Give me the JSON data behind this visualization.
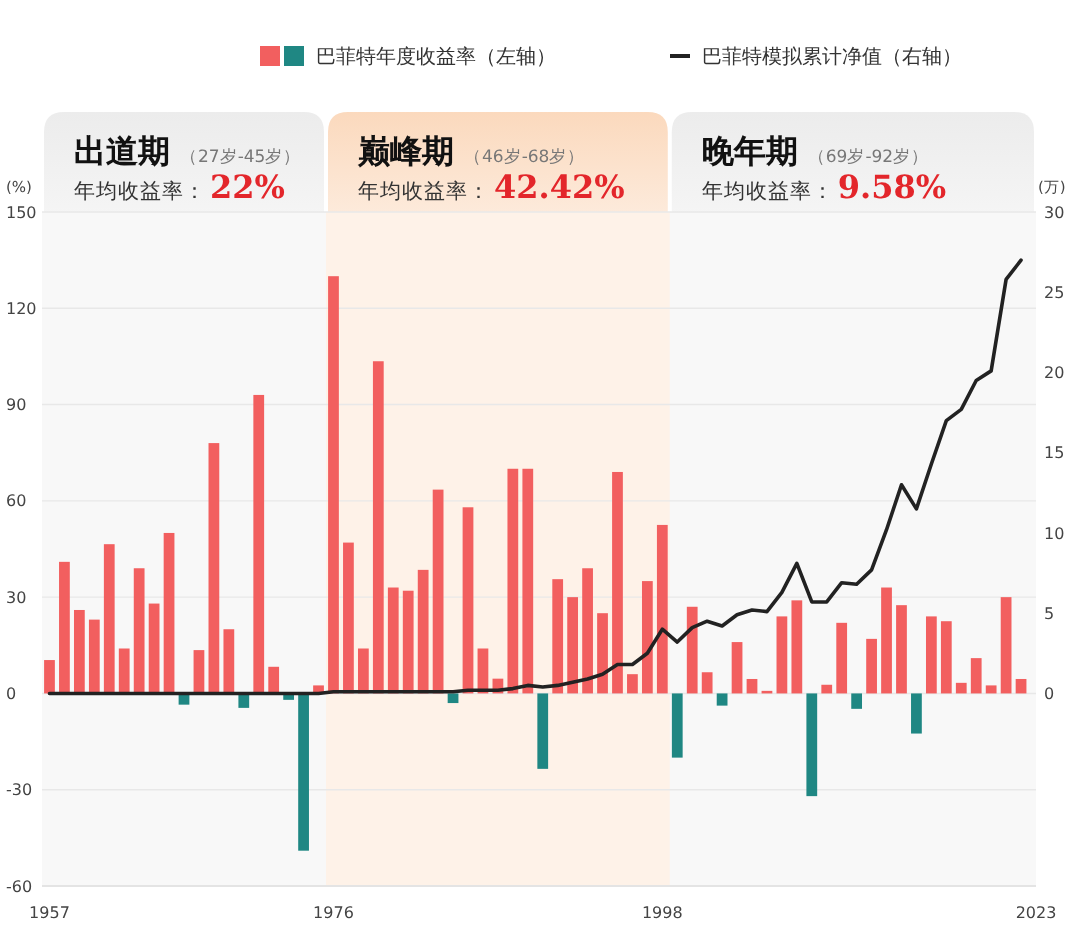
{
  "chart_data": {
    "type": "bar",
    "ylabel": "(%)",
    "y2label": "(万)",
    "x": [
      1957,
      1958,
      1959,
      1960,
      1961,
      1962,
      1963,
      1964,
      1965,
      1966,
      1967,
      1968,
      1969,
      1970,
      1971,
      1972,
      1973,
      1974,
      1975,
      1976,
      1977,
      1978,
      1979,
      1980,
      1981,
      1982,
      1983,
      1984,
      1985,
      1986,
      1987,
      1988,
      1989,
      1990,
      1991,
      1992,
      1993,
      1994,
      1995,
      1996,
      1997,
      1998,
      1999,
      2000,
      2001,
      2002,
      2003,
      2004,
      2005,
      2006,
      2007,
      2008,
      2009,
      2010,
      2011,
      2012,
      2013,
      2014,
      2015,
      2016,
      2017,
      2018,
      2019,
      2020,
      2021,
      2022
    ],
    "xlim": [
      1956.5,
      2023
    ],
    "xticks": [
      1957,
      1976,
      1998,
      2023
    ],
    "ylim": [
      -60,
      150
    ],
    "yticks": [
      -60,
      -30,
      0,
      30,
      60,
      90,
      120,
      150
    ],
    "y2lim": [
      -12,
      30
    ],
    "y2ticks": [
      0,
      5,
      10,
      15,
      20,
      25,
      30
    ],
    "grid": "y",
    "legend": "top",
    "series": [
      {
        "name": "巴菲特年度收益率（左轴）",
        "colors": [
          "#f25f5f",
          "#f25f5f",
          "#f25f5f",
          "#f25f5f",
          "#f25f5f",
          "#f25f5f",
          "#f25f5f",
          "#f25f5f",
          "#f25f5f",
          "#1f8783",
          "#f25f5f",
          "#f25f5f",
          "#f25f5f",
          "#1f8783",
          "#f25f5f",
          "#f25f5f",
          "#1f8783",
          "#1f8783",
          "#f25f5f",
          "#f25f5f",
          "#f25f5f",
          "#f25f5f",
          "#f25f5f",
          "#f25f5f",
          "#f25f5f",
          "#f25f5f",
          "#f25f5f",
          "#1f8783",
          "#f25f5f",
          "#f25f5f",
          "#f25f5f",
          "#f25f5f",
          "#f25f5f",
          "#1f8783",
          "#f25f5f",
          "#f25f5f",
          "#f25f5f",
          "#f25f5f",
          "#f25f5f",
          "#f25f5f",
          "#f25f5f",
          "#f25f5f",
          "#1f8783",
          "#f25f5f",
          "#f25f5f",
          "#1f8783",
          "#f25f5f",
          "#f25f5f",
          "#f25f5f",
          "#f25f5f",
          "#f25f5f",
          "#1f8783",
          "#f25f5f",
          "#f25f5f",
          "#1f8783",
          "#f25f5f",
          "#f25f5f",
          "#f25f5f",
          "#1f8783",
          "#f25f5f",
          "#f25f5f",
          "#f25f5f",
          "#f25f5f",
          "#f25f5f",
          "#f25f5f",
          "#f25f5f"
        ],
        "values": [
          10.4,
          41,
          26,
          23,
          46.5,
          14,
          39,
          28,
          50,
          -3.5,
          13.5,
          78,
          20,
          -4.5,
          93,
          8.3,
          -2,
          -49,
          2.5,
          130,
          47,
          14,
          103.5,
          33,
          32,
          38.5,
          63.5,
          -3,
          58,
          14,
          4.6,
          70,
          70,
          -23.5,
          35.6,
          30,
          39,
          25,
          69,
          6,
          35,
          52.5,
          -20,
          27,
          6.6,
          -3.8,
          16,
          4.5,
          0.8,
          24,
          29,
          -32,
          2.7,
          22,
          -4.8,
          17,
          33,
          27.5,
          -12.5,
          24,
          22.5,
          3.3,
          11,
          2.5,
          30,
          4.5
        ]
      },
      {
        "name": "巴菲特模拟累计净值（右轴）",
        "type": "line",
        "axis": "y2",
        "color": "#222222",
        "values": [
          0,
          0,
          0,
          0,
          0,
          0,
          0,
          0,
          0,
          0,
          0,
          0,
          0,
          0,
          0,
          0,
          0,
          0,
          0,
          0.1,
          0.1,
          0.1,
          0.1,
          0.1,
          0.1,
          0.1,
          0.1,
          0.1,
          0.2,
          0.2,
          0.2,
          0.3,
          0.5,
          0.4,
          0.5,
          0.7,
          0.9,
          1.2,
          1.8,
          1.8,
          2.5,
          4,
          3.2,
          4.1,
          4.5,
          4.2,
          4.9,
          5.2,
          5.1,
          6.3,
          8.1,
          5.7,
          5.7,
          6.9,
          6.8,
          7.7,
          10.2,
          13,
          11.5,
          14.3,
          17,
          17.7,
          19.5,
          20.1,
          25.8,
          27
        ]
      }
    ],
    "bands": [
      {
        "axis": "x",
        "from": 1956.5,
        "to": 1975.5,
        "label": "出道期",
        "color": "#ececec"
      },
      {
        "axis": "x",
        "from": 1975.5,
        "to": 1998.5,
        "label": "巅峰期",
        "color": "#fbd9bd"
      },
      {
        "axis": "x",
        "from": 1998.5,
        "to": 2023,
        "label": "晚年期",
        "color": "#ececec"
      }
    ],
    "annotations": [
      "（27岁-45岁）",
      "年均收益率：",
      "22%",
      "（46岁-68岁）",
      "年均收益率：",
      "42.42%",
      "（69岁-92岁）",
      "年均收益率：",
      "9.58%"
    ]
  }
}
